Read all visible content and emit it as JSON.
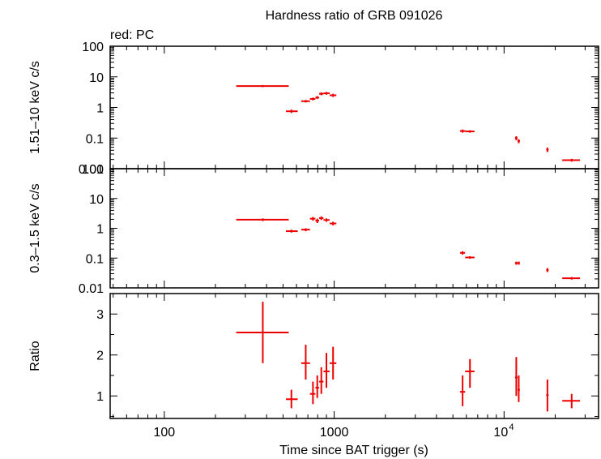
{
  "chart_data": {
    "type": "scatter",
    "title": "Hardness ratio of GRB 091026",
    "legend_text": "red: PC",
    "xlabel": "Time since BAT trigger (s)",
    "xscale": "log",
    "xlim": [
      48,
      36000
    ],
    "x_tick_labels": [
      "100",
      "1000",
      "10"
    ],
    "x_tick_exponent": "4",
    "series_color": "#ee0000",
    "panels": [
      {
        "ylabel": "1.51–10 keV c/s",
        "yscale": "log",
        "ylim": [
          0.01,
          100
        ],
        "y_ticks": [
          0.01,
          0.1,
          1,
          10,
          100
        ],
        "y_tick_labels": [
          "0.01",
          "0.1",
          "1",
          "10",
          "100"
        ],
        "points": [
          {
            "x": 380,
            "xlo": 265,
            "xhi": 540,
            "y": 5.0,
            "ylo": 4.6,
            "yhi": 5.4
          },
          {
            "x": 560,
            "xlo": 520,
            "xhi": 610,
            "y": 0.75,
            "ylo": 0.66,
            "yhi": 0.85
          },
          {
            "x": 680,
            "xlo": 640,
            "xhi": 720,
            "y": 1.6,
            "ylo": 1.45,
            "yhi": 1.75
          },
          {
            "x": 750,
            "xlo": 720,
            "xhi": 775,
            "y": 1.9,
            "ylo": 1.7,
            "yhi": 2.1
          },
          {
            "x": 795,
            "xlo": 775,
            "xhi": 815,
            "y": 2.1,
            "ylo": 1.9,
            "yhi": 2.35
          },
          {
            "x": 840,
            "xlo": 815,
            "xhi": 865,
            "y": 2.8,
            "ylo": 2.5,
            "yhi": 3.1
          },
          {
            "x": 900,
            "xlo": 865,
            "xhi": 940,
            "y": 2.9,
            "ylo": 2.6,
            "yhi": 3.2
          },
          {
            "x": 985,
            "xlo": 940,
            "xhi": 1030,
            "y": 2.5,
            "ylo": 2.2,
            "yhi": 2.8
          },
          {
            "x": 5700,
            "xlo": 5500,
            "xhi": 5900,
            "y": 0.17,
            "ylo": 0.15,
            "yhi": 0.19
          },
          {
            "x": 6300,
            "xlo": 5900,
            "xhi": 6700,
            "y": 0.165,
            "ylo": 0.15,
            "yhi": 0.18
          },
          {
            "x": 11800,
            "xlo": 11600,
            "xhi": 12000,
            "y": 0.1,
            "ylo": 0.085,
            "yhi": 0.115
          },
          {
            "x": 12200,
            "xlo": 12000,
            "xhi": 12400,
            "y": 0.08,
            "ylo": 0.068,
            "yhi": 0.092
          },
          {
            "x": 18000,
            "xlo": 17700,
            "xhi": 18300,
            "y": 0.042,
            "ylo": 0.035,
            "yhi": 0.049
          },
          {
            "x": 25000,
            "xlo": 22000,
            "xhi": 28000,
            "y": 0.019,
            "ylo": 0.017,
            "yhi": 0.021
          }
        ]
      },
      {
        "ylabel": "0.3–1.5 keV c/s",
        "yscale": "log",
        "ylim": [
          0.01,
          100
        ],
        "y_ticks": [
          0.01,
          0.1,
          1,
          10,
          100
        ],
        "y_tick_labels": [
          "0.01",
          "0.1",
          "1",
          "10",
          "100"
        ],
        "points": [
          {
            "x": 380,
            "xlo": 265,
            "xhi": 540,
            "y": 1.95,
            "ylo": 1.75,
            "yhi": 2.15
          },
          {
            "x": 560,
            "xlo": 520,
            "xhi": 610,
            "y": 0.8,
            "ylo": 0.72,
            "yhi": 0.9
          },
          {
            "x": 680,
            "xlo": 640,
            "xhi": 720,
            "y": 0.9,
            "ylo": 0.8,
            "yhi": 1.0
          },
          {
            "x": 750,
            "xlo": 720,
            "xhi": 775,
            "y": 2.1,
            "ylo": 1.8,
            "yhi": 2.4
          },
          {
            "x": 795,
            "xlo": 775,
            "xhi": 815,
            "y": 1.8,
            "ylo": 1.5,
            "yhi": 2.1
          },
          {
            "x": 840,
            "xlo": 815,
            "xhi": 865,
            "y": 2.2,
            "ylo": 1.9,
            "yhi": 2.5
          },
          {
            "x": 900,
            "xlo": 865,
            "xhi": 940,
            "y": 1.9,
            "ylo": 1.65,
            "yhi": 2.15
          },
          {
            "x": 985,
            "xlo": 940,
            "xhi": 1030,
            "y": 1.45,
            "ylo": 1.25,
            "yhi": 1.65
          },
          {
            "x": 5700,
            "xlo": 5500,
            "xhi": 5900,
            "y": 0.15,
            "ylo": 0.13,
            "yhi": 0.17
          },
          {
            "x": 6300,
            "xlo": 5900,
            "xhi": 6700,
            "y": 0.105,
            "ylo": 0.095,
            "yhi": 0.115
          },
          {
            "x": 11800,
            "xlo": 11600,
            "xhi": 12000,
            "y": 0.068,
            "ylo": 0.06,
            "yhi": 0.076
          },
          {
            "x": 12200,
            "xlo": 12000,
            "xhi": 12400,
            "y": 0.068,
            "ylo": 0.06,
            "yhi": 0.076
          },
          {
            "x": 18000,
            "xlo": 17700,
            "xhi": 18300,
            "y": 0.04,
            "ylo": 0.034,
            "yhi": 0.046
          },
          {
            "x": 25000,
            "xlo": 22000,
            "xhi": 28000,
            "y": 0.021,
            "ylo": 0.019,
            "yhi": 0.023
          }
        ]
      },
      {
        "ylabel": "Ratio",
        "yscale": "linear",
        "ylim": [
          0.45,
          3.5
        ],
        "y_ticks": [
          1,
          2,
          3
        ],
        "y_tick_labels": [
          "1",
          "2",
          "3"
        ],
        "points": [
          {
            "x": 380,
            "xlo": 265,
            "xhi": 540,
            "y": 2.55,
            "ylo": 1.8,
            "yhi": 3.3
          },
          {
            "x": 560,
            "xlo": 520,
            "xhi": 610,
            "y": 0.92,
            "ylo": 0.7,
            "yhi": 1.15
          },
          {
            "x": 680,
            "xlo": 640,
            "xhi": 720,
            "y": 1.8,
            "ylo": 1.4,
            "yhi": 2.25
          },
          {
            "x": 750,
            "xlo": 720,
            "xhi": 775,
            "y": 1.05,
            "ylo": 0.8,
            "yhi": 1.35
          },
          {
            "x": 795,
            "xlo": 775,
            "xhi": 815,
            "y": 1.2,
            "ylo": 0.95,
            "yhi": 1.5
          },
          {
            "x": 840,
            "xlo": 815,
            "xhi": 865,
            "y": 1.35,
            "ylo": 1.05,
            "yhi": 1.7
          },
          {
            "x": 900,
            "xlo": 865,
            "xhi": 940,
            "y": 1.6,
            "ylo": 1.2,
            "yhi": 2.05
          },
          {
            "x": 985,
            "xlo": 940,
            "xhi": 1030,
            "y": 1.8,
            "ylo": 1.4,
            "yhi": 2.2
          },
          {
            "x": 5700,
            "xlo": 5500,
            "xhi": 5900,
            "y": 1.1,
            "ylo": 0.75,
            "yhi": 1.5
          },
          {
            "x": 6300,
            "xlo": 5900,
            "xhi": 6700,
            "y": 1.6,
            "ylo": 1.2,
            "yhi": 1.9
          },
          {
            "x": 11800,
            "xlo": 11600,
            "xhi": 12000,
            "y": 1.45,
            "ylo": 1.0,
            "yhi": 1.95
          },
          {
            "x": 12200,
            "xlo": 12000,
            "xhi": 12400,
            "y": 1.15,
            "ylo": 0.85,
            "yhi": 1.5
          },
          {
            "x": 18000,
            "xlo": 17700,
            "xhi": 18300,
            "y": 1.02,
            "ylo": 0.62,
            "yhi": 1.4
          },
          {
            "x": 25000,
            "xlo": 22000,
            "xhi": 28000,
            "y": 0.88,
            "ylo": 0.7,
            "yhi": 1.05
          }
        ]
      }
    ]
  }
}
